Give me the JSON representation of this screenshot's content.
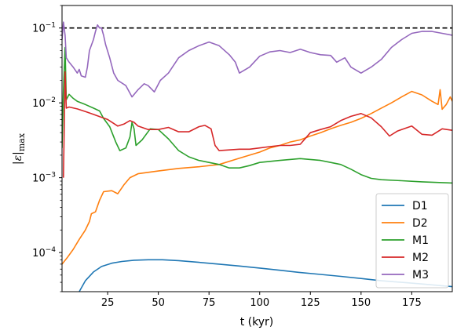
{
  "chart_data": {
    "type": "line",
    "xlabel": "t (kyr)",
    "ylabel": "|ε|max",
    "yscale": "log",
    "xlim": [
      2.5,
      195
    ],
    "ylim": [
      3e-05,
      0.2
    ],
    "x_ticks": [
      25,
      50,
      75,
      100,
      125,
      150,
      175
    ],
    "y_ticks": [
      {
        "value": 0.1,
        "base": "10",
        "exp": "−1"
      },
      {
        "value": 0.01,
        "base": "10",
        "exp": "−2"
      },
      {
        "value": 0.001,
        "base": "10",
        "exp": "−3"
      },
      {
        "value": 0.0001,
        "base": "10",
        "exp": "−4"
      }
    ],
    "reference_line": {
      "y": 0.1,
      "style": "dashed",
      "color": "#000000"
    },
    "legend_position": "lower-right",
    "series": [
      {
        "name": "D1",
        "color": "#1f77b4",
        "points": [
          [
            11,
            3e-05
          ],
          [
            14,
            4.2e-05
          ],
          [
            18,
            5.5e-05
          ],
          [
            22,
            6.5e-05
          ],
          [
            27,
            7.2e-05
          ],
          [
            32,
            7.6e-05
          ],
          [
            38,
            7.9e-05
          ],
          [
            45,
            8e-05
          ],
          [
            52,
            8e-05
          ],
          [
            60,
            7.8e-05
          ],
          [
            70,
            7.4e-05
          ],
          [
            80,
            7e-05
          ],
          [
            90,
            6.6e-05
          ],
          [
            100,
            6.2e-05
          ],
          [
            110,
            5.8e-05
          ],
          [
            120,
            5.4e-05
          ],
          [
            130,
            5.1e-05
          ],
          [
            140,
            4.8e-05
          ],
          [
            150,
            4.5e-05
          ],
          [
            160,
            4.2e-05
          ],
          [
            170,
            4e-05
          ],
          [
            180,
            3.8e-05
          ],
          [
            190,
            3.6e-05
          ],
          [
            195,
            3.5e-05
          ]
        ]
      },
      {
        "name": "D2",
        "color": "#ff7f0e",
        "points": [
          [
            2.5,
            7e-05
          ],
          [
            5,
            8.5e-05
          ],
          [
            8,
            0.00011
          ],
          [
            11,
            0.00015
          ],
          [
            14,
            0.0002
          ],
          [
            16,
            0.00026
          ],
          [
            17,
            0.00033
          ],
          [
            19,
            0.00035
          ],
          [
            21,
            0.0005
          ],
          [
            23,
            0.00065
          ],
          [
            27,
            0.00067
          ],
          [
            30,
            0.00061
          ],
          [
            33,
            0.0008
          ],
          [
            36,
            0.001
          ],
          [
            40,
            0.00113
          ],
          [
            50,
            0.00123
          ],
          [
            60,
            0.00133
          ],
          [
            70,
            0.0014
          ],
          [
            80,
            0.0015
          ],
          [
            88,
            0.00175
          ],
          [
            95,
            0.002
          ],
          [
            100,
            0.0022
          ],
          [
            105,
            0.0025
          ],
          [
            110,
            0.0027
          ],
          [
            115,
            0.003
          ],
          [
            120,
            0.0032
          ],
          [
            125,
            0.0036
          ],
          [
            130,
            0.004
          ],
          [
            135,
            0.0045
          ],
          [
            140,
            0.005
          ],
          [
            145,
            0.0055
          ],
          [
            150,
            0.0062
          ],
          [
            155,
            0.0072
          ],
          [
            160,
            0.0085
          ],
          [
            165,
            0.01
          ],
          [
            170,
            0.012
          ],
          [
            175,
            0.0142
          ],
          [
            180,
            0.0128
          ],
          [
            185,
            0.0105
          ],
          [
            188,
            0.0095
          ],
          [
            189,
            0.015
          ],
          [
            190,
            0.0082
          ],
          [
            192,
            0.0095
          ],
          [
            194,
            0.012
          ],
          [
            195,
            0.0105
          ]
        ]
      },
      {
        "name": "M1",
        "color": "#2ca02c",
        "points": [
          [
            2.5,
            0.0025
          ],
          [
            3.2,
            0.015
          ],
          [
            4,
            0.055
          ],
          [
            4.6,
            0.011
          ],
          [
            6,
            0.013
          ],
          [
            8,
            0.0115
          ],
          [
            10,
            0.0105
          ],
          [
            14,
            0.0095
          ],
          [
            18,
            0.0085
          ],
          [
            21,
            0.0078
          ],
          [
            23,
            0.0062
          ],
          [
            26,
            0.0048
          ],
          [
            29,
            0.003
          ],
          [
            31,
            0.0023
          ],
          [
            34,
            0.0025
          ],
          [
            36,
            0.0035
          ],
          [
            37,
            0.0055
          ],
          [
            38,
            0.0045
          ],
          [
            39,
            0.0027
          ],
          [
            42,
            0.0032
          ],
          [
            46,
            0.0045
          ],
          [
            50,
            0.0044
          ],
          [
            55,
            0.0033
          ],
          [
            60,
            0.0023
          ],
          [
            65,
            0.0019
          ],
          [
            70,
            0.0017
          ],
          [
            75,
            0.0016
          ],
          [
            80,
            0.0015
          ],
          [
            85,
            0.00135
          ],
          [
            90,
            0.00135
          ],
          [
            95,
            0.00145
          ],
          [
            100,
            0.0016
          ],
          [
            110,
            0.0017
          ],
          [
            120,
            0.0018
          ],
          [
            125,
            0.00175
          ],
          [
            130,
            0.0017
          ],
          [
            135,
            0.0016
          ],
          [
            140,
            0.0015
          ],
          [
            145,
            0.0013
          ],
          [
            150,
            0.0011
          ],
          [
            155,
            0.00098
          ],
          [
            160,
            0.00094
          ],
          [
            170,
            0.00091
          ],
          [
            180,
            0.00088
          ],
          [
            190,
            0.00086
          ],
          [
            195,
            0.00085
          ]
        ]
      },
      {
        "name": "M2",
        "color": "#d62728",
        "points": [
          [
            3.2,
            0.001
          ],
          [
            4,
            0.026
          ],
          [
            4.6,
            0.0085
          ],
          [
            6,
            0.0088
          ],
          [
            10,
            0.0083
          ],
          [
            15,
            0.0075
          ],
          [
            20,
            0.0067
          ],
          [
            25,
            0.006
          ],
          [
            30,
            0.0049
          ],
          [
            33,
            0.0052
          ],
          [
            36,
            0.0058
          ],
          [
            38,
            0.0055
          ],
          [
            40,
            0.0049
          ],
          [
            45,
            0.0044
          ],
          [
            50,
            0.0044
          ],
          [
            55,
            0.0047
          ],
          [
            60,
            0.0041
          ],
          [
            65,
            0.0041
          ],
          [
            70,
            0.0048
          ],
          [
            73,
            0.005
          ],
          [
            76,
            0.0045
          ],
          [
            78,
            0.0027
          ],
          [
            80,
            0.0023
          ],
          [
            85,
            0.00235
          ],
          [
            90,
            0.0024
          ],
          [
            95,
            0.0024
          ],
          [
            100,
            0.0025
          ],
          [
            105,
            0.0026
          ],
          [
            110,
            0.0027
          ],
          [
            115,
            0.0027
          ],
          [
            120,
            0.0028
          ],
          [
            125,
            0.004
          ],
          [
            130,
            0.0044
          ],
          [
            135,
            0.0048
          ],
          [
            140,
            0.0058
          ],
          [
            145,
            0.0066
          ],
          [
            150,
            0.0072
          ],
          [
            155,
            0.0063
          ],
          [
            160,
            0.0048
          ],
          [
            164,
            0.0036
          ],
          [
            168,
            0.0042
          ],
          [
            170,
            0.0044
          ],
          [
            175,
            0.0049
          ],
          [
            180,
            0.0038
          ],
          [
            185,
            0.0037
          ],
          [
            190,
            0.0045
          ],
          [
            195,
            0.0043
          ]
        ]
      },
      {
        "name": "M3",
        "color": "#9467bd",
        "points": [
          [
            2.5,
            0.07
          ],
          [
            3.2,
            0.12
          ],
          [
            4,
            0.08
          ],
          [
            4.6,
            0.04
          ],
          [
            6,
            0.035
          ],
          [
            8,
            0.03
          ],
          [
            10,
            0.025
          ],
          [
            11,
            0.028
          ],
          [
            12,
            0.023
          ],
          [
            14,
            0.022
          ],
          [
            15,
            0.03
          ],
          [
            16,
            0.05
          ],
          [
            18,
            0.07
          ],
          [
            19,
            0.09
          ],
          [
            20,
            0.11
          ],
          [
            21,
            0.1
          ],
          [
            22,
            0.1
          ],
          [
            23,
            0.08
          ],
          [
            24,
            0.06
          ],
          [
            26,
            0.04
          ],
          [
            28,
            0.025
          ],
          [
            30,
            0.02
          ],
          [
            34,
            0.017
          ],
          [
            37,
            0.012
          ],
          [
            40,
            0.015
          ],
          [
            43,
            0.018
          ],
          [
            45,
            0.017
          ],
          [
            48,
            0.014
          ],
          [
            51,
            0.02
          ],
          [
            55,
            0.025
          ],
          [
            60,
            0.04
          ],
          [
            65,
            0.05
          ],
          [
            70,
            0.058
          ],
          [
            75,
            0.065
          ],
          [
            80,
            0.058
          ],
          [
            85,
            0.044
          ],
          [
            88,
            0.035
          ],
          [
            90,
            0.025
          ],
          [
            95,
            0.03
          ],
          [
            100,
            0.042
          ],
          [
            105,
            0.048
          ],
          [
            110,
            0.05
          ],
          [
            115,
            0.047
          ],
          [
            120,
            0.052
          ],
          [
            125,
            0.047
          ],
          [
            130,
            0.044
          ],
          [
            135,
            0.043
          ],
          [
            138,
            0.035
          ],
          [
            142,
            0.04
          ],
          [
            145,
            0.03
          ],
          [
            150,
            0.025
          ],
          [
            155,
            0.03
          ],
          [
            160,
            0.038
          ],
          [
            165,
            0.055
          ],
          [
            170,
            0.07
          ],
          [
            175,
            0.085
          ],
          [
            180,
            0.09
          ],
          [
            185,
            0.09
          ],
          [
            190,
            0.085
          ],
          [
            195,
            0.08
          ]
        ]
      }
    ]
  }
}
